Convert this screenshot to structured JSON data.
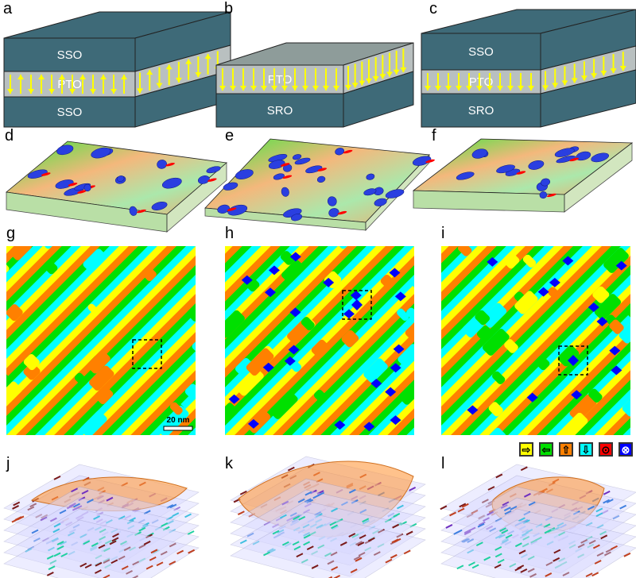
{
  "panels": {
    "a": {
      "label": "a",
      "layers": [
        "SSO",
        "PTO",
        "SSO"
      ]
    },
    "b": {
      "label": "b",
      "layers": [
        "PTO",
        "SRO"
      ]
    },
    "c": {
      "label": "c",
      "layers": [
        "SSO",
        "PTO",
        "SRO"
      ]
    },
    "d": {
      "label": "d"
    },
    "e": {
      "label": "e"
    },
    "f": {
      "label": "f"
    },
    "g": {
      "label": "g",
      "scale_bar": "20 nm"
    },
    "h": {
      "label": "h"
    },
    "i": {
      "label": "i"
    },
    "j": {
      "label": "j"
    },
    "k": {
      "label": "k"
    },
    "l": {
      "label": "l"
    }
  },
  "colors": {
    "substrate": "#3e6a78",
    "pto": "#b9c0c0",
    "arrow": "#ffff00",
    "top_gray": "#8e9c9a",
    "yellow": "#ffff00",
    "green": "#00e000",
    "orange": "#ff8000",
    "cyan": "#00ffff",
    "red": "#ff0000",
    "blue": "#0000ff"
  },
  "legend": [
    {
      "icon": "arrow-right-icon",
      "glyph": "⇨",
      "color": "#ffff00"
    },
    {
      "icon": "arrow-left-icon",
      "glyph": "⇦",
      "color": "#00e000"
    },
    {
      "icon": "arrow-up-icon",
      "glyph": "⇧",
      "color": "#ff8000"
    },
    {
      "icon": "arrow-down-icon",
      "glyph": "⇩",
      "color": "#00ffff"
    },
    {
      "icon": "out-of-plane-dot-icon",
      "glyph": "⊙",
      "color": "#ff0000"
    },
    {
      "icon": "into-plane-cross-icon",
      "glyph": "⊗",
      "color": "#0000ff"
    }
  ]
}
